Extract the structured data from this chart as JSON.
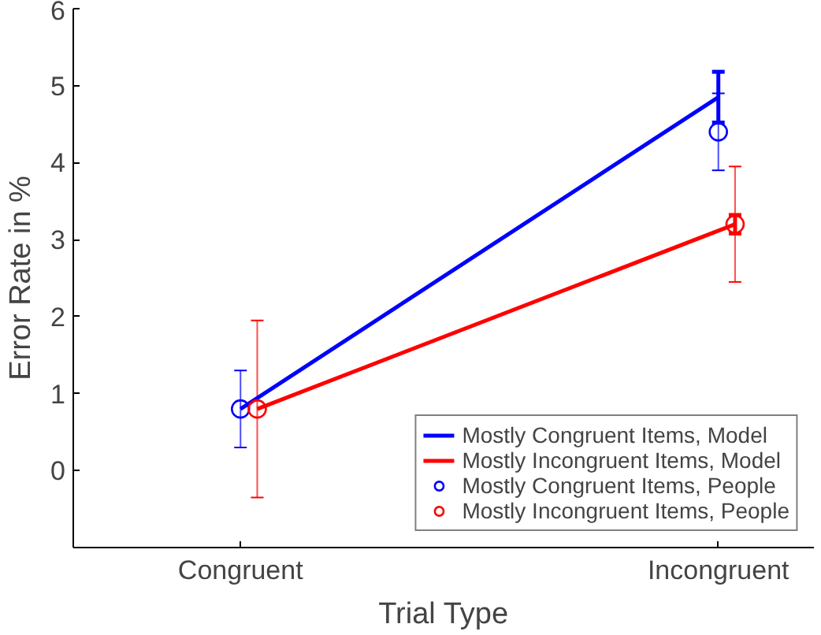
{
  "chart_data": {
    "type": "line",
    "xlabel": "Trial Type",
    "ylabel": "Error Rate in %",
    "categories": [
      "Congruent",
      "Incongruent"
    ],
    "ylim": [
      -1,
      6
    ],
    "yticks": [
      0,
      1,
      2,
      3,
      4,
      5,
      6
    ],
    "grid": false,
    "legend": "bottom right",
    "series": [
      {
        "name": "Mostly Congruent Items, Model",
        "marker": "none",
        "color": "#0000ff",
        "values": [
          0.8,
          4.85
        ],
        "errors": [
          null,
          0.33
        ]
      },
      {
        "name": "Mostly Incongruent Items, Model",
        "marker": "none",
        "color": "#ff0000",
        "values": [
          0.8,
          3.2
        ],
        "errors": [
          null,
          0.12
        ]
      },
      {
        "name": "Mostly Congruent Items, People",
        "type": "scatter",
        "marker": "circle",
        "color": "#0000ff",
        "values": [
          0.8,
          4.4
        ],
        "errors": [
          0.5,
          0.5
        ]
      },
      {
        "name": "Mostly Incongruent Items, People",
        "type": "scatter",
        "marker": "circle",
        "color": "#ff0000",
        "values": [
          0.8,
          3.2
        ],
        "errors": [
          1.15,
          0.75
        ]
      }
    ]
  }
}
